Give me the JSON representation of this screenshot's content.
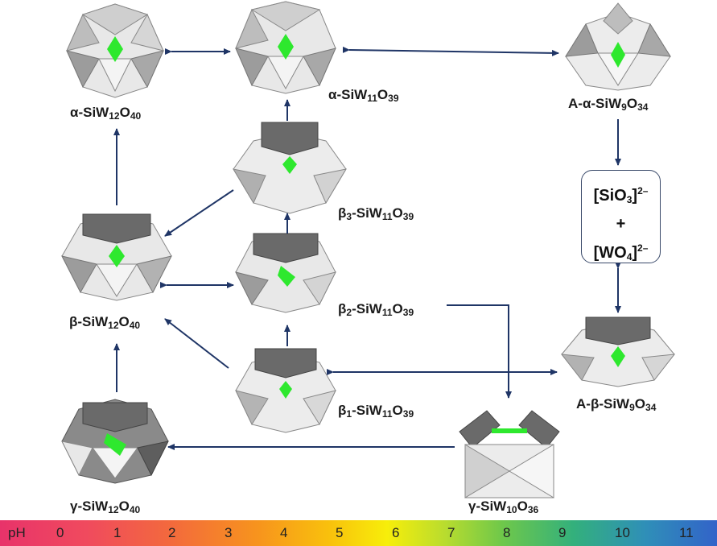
{
  "nodes": {
    "alpha_12": {
      "prefix": "α-SiW",
      "n1": "12",
      "o": "O",
      "n2": "40"
    },
    "alpha_11": {
      "prefix": "α-SiW",
      "n1": "11",
      "o": "O",
      "n2": "39"
    },
    "a_alpha_9": {
      "prefix": "A-α-SiW",
      "n1": "9",
      "o": "O",
      "n2": "34"
    },
    "beta3_11": {
      "prefix": "β",
      "sub": "3",
      "mid": "-SiW",
      "n1": "11",
      "o": "O",
      "n2": "39"
    },
    "beta_12": {
      "prefix": "β-SiW",
      "n1": "12",
      "o": "O",
      "n2": "40"
    },
    "beta2_11": {
      "prefix": "β",
      "sub": "2",
      "mid": "-SiW",
      "n1": "11",
      "o": "O",
      "n2": "39"
    },
    "beta1_11": {
      "prefix": "β",
      "sub": "1",
      "mid": "-SiW",
      "n1": "11",
      "o": "O",
      "n2": "39"
    },
    "a_beta_9": {
      "prefix": "A-β-SiW",
      "n1": "9",
      "o": "O",
      "n2": "34"
    },
    "gamma_12": {
      "prefix": "γ-SiW",
      "n1": "12",
      "o": "O",
      "n2": "40"
    },
    "gamma_10": {
      "prefix": "γ-SiW",
      "n1": "10",
      "o": "O",
      "n2": "36"
    }
  },
  "box": {
    "line1_a": "[SiO",
    "line1_sub": "3",
    "line1_b": "]",
    "line1_sup": "2–",
    "plus": "+",
    "line2_a": "[WO",
    "line2_sub": "4",
    "line2_b": "]",
    "line2_sup": "2–"
  },
  "ph_scale": {
    "label": "pH",
    "ticks": [
      "0",
      "1",
      "2",
      "3",
      "4",
      "5",
      "6",
      "7",
      "8",
      "9",
      "10",
      "11"
    ]
  },
  "colors": {
    "arrow": "#1f3566",
    "silicon_center": "#2ee82e",
    "light_poly": "#e6e6e6",
    "dark_poly": "#6a6a6a"
  }
}
